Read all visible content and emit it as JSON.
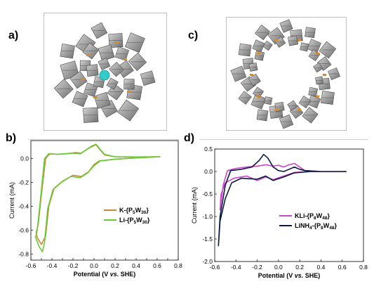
{
  "panels": {
    "a": "a)",
    "b": "b)",
    "c": "c)",
    "d": "d)"
  },
  "colors": {
    "k_series": "#c8893a",
    "li_series": "#66cc33",
    "kli_series": "#cc44cc",
    "linh4_series": "#0b1a44",
    "polyhedra": "#8a8a8a",
    "orange_links": "#d98a2b",
    "cation": "#33cccc"
  },
  "chart_data": [
    {
      "type": "line",
      "panel": "b",
      "xlabel_prefix": "Potential (V ",
      "xlabel_italic": "vs.",
      "xlabel_suffix": " SHE)",
      "ylabel": "Current (mA)",
      "xlim": [
        -0.6,
        0.8
      ],
      "ylim": [
        -0.85,
        0.15
      ],
      "xticks": [
        "-0.6",
        "-0.5",
        "-0.4",
        "-0.3",
        "-0.2",
        "-0.1",
        "0.0",
        "0.1",
        "0.2",
        "0.3",
        "0.4",
        "0.5",
        "0.6",
        "0.7",
        "0.8"
      ],
      "yticks": [
        "0.0",
        "-0.2",
        "-0.4",
        "-0.6",
        "-0.8"
      ],
      "ytick_values": [
        0.0,
        -0.2,
        -0.4,
        -0.6,
        -0.8
      ],
      "legend": [
        {
          "key": "k",
          "label": "K-{P",
          "sub1": "5",
          "mid": "W",
          "sub2": "30",
          "end": "}"
        },
        {
          "key": "li",
          "label": "Li-{P",
          "sub1": "5",
          "mid": "W",
          "sub2": "30",
          "end": "}"
        }
      ],
      "series": [
        {
          "name": "K-{P5W30}",
          "color_key": "k_series",
          "points": [
            [
              0.63,
              0.015
            ],
            [
              0.4,
              0.013
            ],
            [
              0.2,
              0.015
            ],
            [
              0.1,
              0.03
            ],
            [
              0.05,
              0.08
            ],
            [
              0.02,
              0.115
            ],
            [
              -0.02,
              0.1
            ],
            [
              -0.08,
              0.07
            ],
            [
              -0.12,
              0.045
            ],
            [
              -0.18,
              0.05
            ],
            [
              -0.25,
              0.04
            ],
            [
              -0.35,
              0.035
            ],
            [
              -0.42,
              0.04
            ],
            [
              -0.46,
              0.0
            ],
            [
              -0.5,
              -0.3
            ],
            [
              -0.53,
              -0.55
            ],
            [
              -0.55,
              -0.62
            ],
            [
              -0.54,
              -0.66
            ],
            [
              -0.5,
              -0.72
            ],
            [
              -0.46,
              -0.65
            ],
            [
              -0.43,
              -0.4
            ],
            [
              -0.38,
              -0.25
            ],
            [
              -0.3,
              -0.19
            ],
            [
              -0.2,
              -0.14
            ],
            [
              -0.12,
              -0.15
            ],
            [
              -0.05,
              -0.11
            ],
            [
              0.0,
              -0.05
            ],
            [
              0.05,
              -0.02
            ],
            [
              0.2,
              -0.005
            ],
            [
              0.4,
              0.005
            ],
            [
              0.63,
              0.015
            ]
          ]
        },
        {
          "name": "Li-{P5W30}",
          "color_key": "li_series",
          "points": [
            [
              0.63,
              0.015
            ],
            [
              0.4,
              0.013
            ],
            [
              0.2,
              0.015
            ],
            [
              0.1,
              0.035
            ],
            [
              0.05,
              0.085
            ],
            [
              0.02,
              0.12
            ],
            [
              -0.02,
              0.105
            ],
            [
              -0.08,
              0.07
            ],
            [
              -0.13,
              0.04
            ],
            [
              -0.2,
              0.045
            ],
            [
              -0.28,
              0.04
            ],
            [
              -0.36,
              0.035
            ],
            [
              -0.43,
              0.04
            ],
            [
              -0.47,
              0.0
            ],
            [
              -0.51,
              -0.35
            ],
            [
              -0.54,
              -0.6
            ],
            [
              -0.555,
              -0.66
            ],
            [
              -0.52,
              -0.74
            ],
            [
              -0.49,
              -0.78
            ],
            [
              -0.47,
              -0.7
            ],
            [
              -0.44,
              -0.42
            ],
            [
              -0.39,
              -0.26
            ],
            [
              -0.31,
              -0.2
            ],
            [
              -0.22,
              -0.15
            ],
            [
              -0.13,
              -0.16
            ],
            [
              -0.06,
              -0.12
            ],
            [
              0.0,
              -0.06
            ],
            [
              0.06,
              -0.02
            ],
            [
              0.2,
              -0.005
            ],
            [
              0.4,
              0.005
            ],
            [
              0.63,
              0.015
            ]
          ]
        }
      ]
    },
    {
      "type": "line",
      "panel": "d",
      "xlabel_prefix": "Potential (V ",
      "xlabel_italic": "vs.",
      "xlabel_suffix": " SHE)",
      "ylabel": "Current (mA)",
      "xlim": [
        -0.6,
        0.8
      ],
      "ylim": [
        -2.0,
        0.5
      ],
      "xticks": [
        "-0.6",
        "-0.4",
        "-0.2",
        "0.0",
        "0.2",
        "0.4",
        "0.6",
        "0.8"
      ],
      "yticks": [
        "0.5",
        "0.0",
        "-0.5",
        "-1.0",
        "-1.5",
        "-2.0"
      ],
      "ytick_values": [
        0.5,
        0.0,
        -0.5,
        -1.0,
        -1.5,
        -2.0
      ],
      "legend": [
        {
          "key": "kli",
          "label": "KLi-{P",
          "sub1": "8",
          "mid": "W",
          "sub2": "48",
          "end": "}"
        },
        {
          "key": "linh4",
          "label": "LiNH",
          "sub0": "4",
          "label2": "-{P",
          "sub1": "8",
          "mid": "W",
          "sub2": "48",
          "end": "}"
        }
      ],
      "series": [
        {
          "name": "KLi-{P8W48}",
          "color_key": "kli_series",
          "points": [
            [
              0.64,
              0.0
            ],
            [
              0.4,
              0.0
            ],
            [
              0.25,
              0.02
            ],
            [
              0.2,
              0.1
            ],
            [
              0.15,
              0.18
            ],
            [
              0.1,
              0.15
            ],
            [
              0.05,
              0.1
            ],
            [
              0.0,
              0.14
            ],
            [
              -0.05,
              0.12
            ],
            [
              -0.12,
              0.15
            ],
            [
              -0.2,
              0.12
            ],
            [
              -0.3,
              0.1
            ],
            [
              -0.4,
              0.07
            ],
            [
              -0.48,
              0.02
            ],
            [
              -0.52,
              -0.3
            ],
            [
              -0.55,
              -0.85
            ],
            [
              -0.54,
              -0.5
            ],
            [
              -0.5,
              -0.25
            ],
            [
              -0.42,
              -0.15
            ],
            [
              -0.3,
              -0.1
            ],
            [
              -0.2,
              -0.2
            ],
            [
              -0.12,
              -0.12
            ],
            [
              -0.05,
              -0.18
            ],
            [
              0.05,
              -0.1
            ],
            [
              0.15,
              -0.02
            ],
            [
              0.3,
              0.0
            ],
            [
              0.64,
              0.0
            ]
          ]
        },
        {
          "name": "LiNH4-{P8W48}",
          "color_key": "linh4_series",
          "points": [
            [
              0.64,
              0.0
            ],
            [
              0.4,
              0.0
            ],
            [
              0.25,
              0.02
            ],
            [
              0.2,
              0.05
            ],
            [
              0.15,
              0.1
            ],
            [
              0.1,
              0.05
            ],
            [
              0.05,
              0.0
            ],
            [
              0.0,
              0.02
            ],
            [
              -0.05,
              0.1
            ],
            [
              -0.1,
              0.3
            ],
            [
              -0.14,
              0.38
            ],
            [
              -0.18,
              0.25
            ],
            [
              -0.25,
              0.1
            ],
            [
              -0.35,
              0.05
            ],
            [
              -0.45,
              0.02
            ],
            [
              -0.5,
              -0.3
            ],
            [
              -0.55,
              -1.0
            ],
            [
              -0.565,
              -1.65
            ],
            [
              -0.55,
              -1.1
            ],
            [
              -0.5,
              -0.6
            ],
            [
              -0.44,
              -0.25
            ],
            [
              -0.35,
              -0.15
            ],
            [
              -0.2,
              -0.17
            ],
            [
              -0.12,
              -0.1
            ],
            [
              -0.05,
              -0.2
            ],
            [
              0.05,
              -0.12
            ],
            [
              0.15,
              -0.03
            ],
            [
              0.3,
              0.0
            ],
            [
              0.64,
              0.0
            ]
          ]
        }
      ]
    }
  ]
}
